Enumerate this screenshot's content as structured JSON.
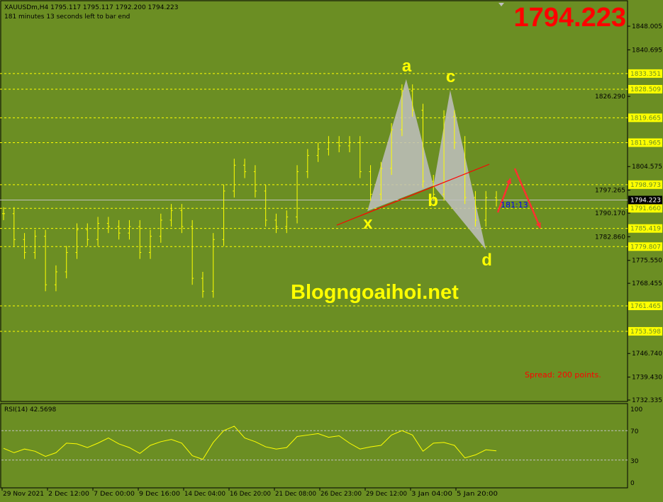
{
  "header": {
    "symbol_line": "XAUUSDm,H4  1795.117 1795.117 1792.200 1794.223",
    "timer_line": "181 minutes 13 seconds left to bar end"
  },
  "big_price": "1794.223",
  "watermark": "Blogngoaihoi.net",
  "spread_text": "Spread: 200 points.",
  "bar_timer": "181:13",
  "colors": {
    "background": "#6b8e23",
    "bars": "#ffff00",
    "levels": "#ffff00",
    "trendline": "#ff0000",
    "pattern_fill": "#c0c0c0",
    "current_price": "#c0c0c0"
  },
  "chart_data": [
    {
      "type": "bar",
      "title": "XAUUSDm,H4",
      "ylim": [
        1732.335,
        1848.005
      ],
      "price_axis_ticks": [
        "1848.005",
        "1840.695",
        "1826.290",
        "1804.575",
        "1797.265",
        "1790.170",
        "1782.860",
        "1775.550",
        "1768.455",
        "1746.740",
        "1739.430",
        "1732.335"
      ],
      "xticks": [
        "29 Nov 2021",
        "2 Dec 12:00",
        "7 Dec 00:00",
        "9 Dec 16:00",
        "14 Dec 04:00",
        "16 Dec 20:00",
        "21 Dec 08:00",
        "26 Dec 23:00",
        "29 Dec 12:00",
        "3 Jan 04:00",
        "5 Jan 20:00"
      ],
      "close": [
        1790,
        1782,
        1778,
        1783,
        1768,
        1772,
        1778,
        1785,
        1782,
        1787,
        1786,
        1784,
        1786,
        1778,
        1783,
        1788,
        1791,
        1786,
        1770,
        1766,
        1782,
        1797,
        1805,
        1803,
        1797,
        1788,
        1786,
        1789,
        1803,
        1808,
        1810,
        1812,
        1811,
        1812,
        1803,
        1796,
        1804,
        1816,
        1828,
        1822,
        1800,
        1796,
        1820,
        1812,
        1795,
        1788,
        1795,
        1794.223
      ],
      "current_price": "1794.223",
      "levels": [
        "1833.351",
        "1828.509",
        "1819.665",
        "1811.965",
        "1798.973",
        "1791.660",
        "1785.419",
        "1779.807",
        "1761.465",
        "1753.598"
      ],
      "pattern": [
        {
          "label": "x",
          "bar": 34.7,
          "price": 1790.8
        },
        {
          "label": "a",
          "bar": 38.4,
          "price": 1831.6
        },
        {
          "label": "b",
          "bar": 41,
          "price": 1798.7
        },
        {
          "label": "c",
          "bar": 42.6,
          "price": 1828.2
        },
        {
          "label": "d",
          "bar": 46,
          "price": 1778.9
        }
      ]
    },
    {
      "type": "line",
      "title": "RSI(14) 42.5698",
      "ylim": [
        0,
        100
      ],
      "yticks": [
        "100",
        "70",
        "30",
        "0"
      ],
      "levels": [
        70,
        30
      ],
      "values": [
        46,
        40,
        45,
        42,
        35,
        40,
        53,
        52,
        47,
        53,
        60,
        52,
        47,
        39,
        50,
        55,
        58,
        53,
        36,
        31,
        54,
        70,
        76,
        60,
        55,
        48,
        45,
        47,
        62,
        64,
        66,
        61,
        63,
        53,
        45,
        48,
        50,
        64,
        70,
        64,
        42,
        53,
        54,
        50,
        33,
        37,
        44,
        42.6
      ]
    }
  ]
}
